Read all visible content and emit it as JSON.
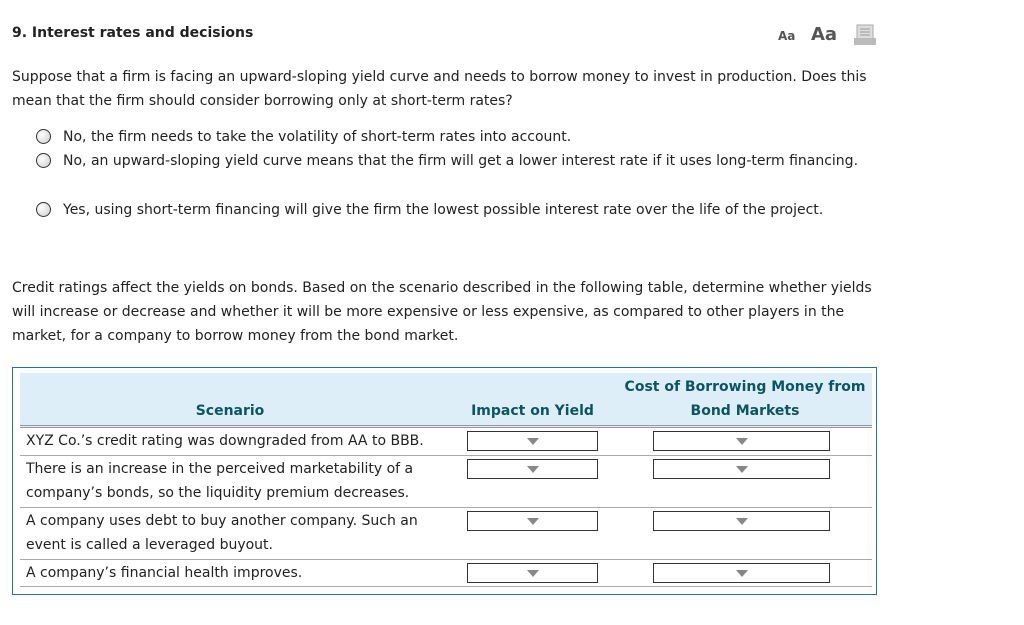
{
  "question": {
    "title": "9. Interest rates and decisions",
    "font_small": "Aa",
    "font_large": "Aa",
    "print_icon": "print-icon"
  },
  "part1": {
    "prompt": "Suppose that a firm is facing an upward-sloping yield curve and needs to borrow money to invest in production. Does this mean that the firm should consider borrowing only at short-term rates?",
    "options": [
      "No, the firm needs to take the volatility of short-term rates into account.",
      "No, an upward-sloping yield curve means that the firm will get a lower interest rate if it uses long-term financing.",
      "Yes, using short-term financing will give the firm the lowest possible interest rate over the life of the project."
    ]
  },
  "part2": {
    "prompt": "Credit ratings affect the yields on bonds. Based on the scenario described in the following table, determine whether yields will increase or decrease and whether it will be more expensive or less expensive, as compared to other players in the market, for a company to borrow money from the bond market.",
    "headers": {
      "scenario": "Scenario",
      "impact": "Impact on Yield",
      "cost": "Cost of Borrowing Money from Bond Markets"
    },
    "rows": [
      {
        "scenario": "XYZ Co.’s credit rating was downgraded from AA to BBB.",
        "impact": "",
        "cost": ""
      },
      {
        "scenario": "There is an increase in the perceived marketability of a company’s bonds, so the liquidity premium decreases.",
        "impact": "",
        "cost": ""
      },
      {
        "scenario": "A company uses debt to buy another company. Such an event is called a leveraged buyout.",
        "impact": "",
        "cost": ""
      },
      {
        "scenario": "A company’s financial health improves.",
        "impact": "",
        "cost": ""
      }
    ]
  },
  "colors": {
    "header_bg": "#ddeef8",
    "header_text": "#0b5563",
    "table_border": "#2a6e9a"
  }
}
